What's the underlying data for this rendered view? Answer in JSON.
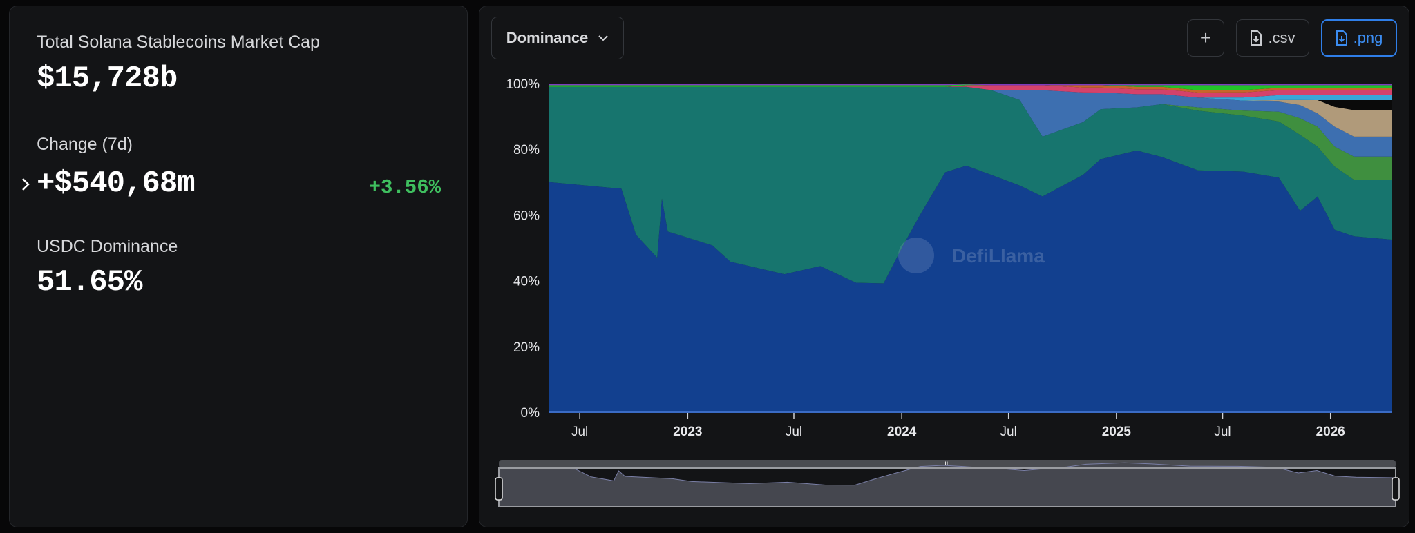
{
  "summary": {
    "market_cap_label": "Total Solana Stablecoins Market Cap",
    "market_cap_value": "$15,728b",
    "change_label": "Change (7d)",
    "change_value": "+$540,68m",
    "change_percent": "+3.56%",
    "dominance_label": "USDC Dominance",
    "dominance_value": "51.65%",
    "positive_color": "#3fbf5f"
  },
  "toolbar": {
    "view_select": "Dominance",
    "add_label": "+",
    "csv_label": ".csv",
    "png_label": ".png",
    "accent_color": "#2f7ee8"
  },
  "watermark": "DefiLlama",
  "chart_data": {
    "type": "area",
    "stacked": true,
    "normalized": true,
    "ylim": [
      0,
      100
    ],
    "yticks": [
      "0%",
      "20%",
      "40%",
      "60%",
      "80%",
      "100%"
    ],
    "xlim": [
      "2022-05-10",
      "2026-04-15"
    ],
    "xticks": [
      {
        "date": "2022-07-01",
        "label": "Jul",
        "bold": false
      },
      {
        "date": "2023-01-01",
        "label": "2023",
        "bold": true
      },
      {
        "date": "2023-07-01",
        "label": "Jul",
        "bold": false
      },
      {
        "date": "2024-01-01",
        "label": "2024",
        "bold": true
      },
      {
        "date": "2024-07-01",
        "label": "Jul",
        "bold": false
      },
      {
        "date": "2025-01-01",
        "label": "2025",
        "bold": true
      },
      {
        "date": "2025-07-01",
        "label": "Jul",
        "bold": false
      },
      {
        "date": "2026-01-01",
        "label": "2026",
        "bold": true
      }
    ],
    "grid": false,
    "legend": "none",
    "x": [
      "2022-05-10",
      "2022-09-10",
      "2022-10-05",
      "2022-11-10",
      "2022-11-18",
      "2022-11-28",
      "2023-02-12",
      "2023-03-15",
      "2023-06-15",
      "2023-08-15",
      "2023-10-15",
      "2023-12-01",
      "2024-01-01",
      "2024-02-01",
      "2024-03-15",
      "2024-04-20",
      "2024-06-01",
      "2024-07-20",
      "2024-08-28",
      "2024-11-05",
      "2024-12-05",
      "2025-02-05",
      "2025-03-20",
      "2025-05-20",
      "2025-08-05",
      "2025-10-05",
      "2025-11-10",
      "2025-12-10",
      "2026-01-08",
      "2026-02-10",
      "2026-04-15"
    ],
    "series": [
      {
        "color": "#12408f",
        "values": [
          70,
          68,
          54,
          47,
          65,
          55,
          51,
          46,
          42,
          44,
          39,
          39,
          50,
          60,
          73,
          75,
          73,
          69,
          65,
          72,
          76,
          79,
          77,
          73,
          73,
          71,
          61,
          65,
          55,
          53,
          52
        ]
      },
      {
        "color": "#17756e",
        "values": [
          29,
          31,
          45,
          52,
          34,
          44,
          48.5,
          53.5,
          57,
          54,
          59,
          59.5,
          49,
          39,
          26,
          24,
          26,
          26,
          18,
          16,
          15,
          13,
          16,
          18,
          17,
          17,
          23,
          15,
          19,
          17,
          18
        ]
      },
      {
        "color": "#3f8f3f",
        "values": [
          0,
          0,
          0,
          0,
          0,
          0,
          0,
          0,
          0,
          0,
          0,
          0,
          0,
          0,
          0,
          0,
          0,
          0,
          0,
          0,
          0,
          0,
          0,
          1,
          1.5,
          3,
          5,
          6,
          6,
          7,
          7
        ]
      },
      {
        "color": "#3d6fb0",
        "values": [
          0,
          0,
          0,
          0,
          0,
          0,
          0,
          0,
          0,
          0,
          0,
          0,
          0,
          0,
          0,
          0,
          0,
          3,
          14,
          9,
          5,
          4,
          3,
          3,
          3,
          3,
          4,
          4,
          6,
          6,
          6
        ]
      },
      {
        "color": "#b09a7a",
        "values": [
          0,
          0,
          0,
          0,
          0,
          0,
          0,
          0,
          0,
          0,
          0,
          0,
          0,
          0,
          0,
          0,
          0,
          0,
          0,
          0,
          0,
          0,
          0,
          0,
          0,
          0.5,
          1.5,
          4,
          6,
          8,
          8
        ]
      },
      {
        "color": "#0a0a0a",
        "values": [
          0,
          0,
          0,
          0,
          0,
          0,
          0,
          0,
          0,
          0,
          0,
          0,
          0,
          0,
          0,
          0,
          0,
          0,
          0,
          0,
          0,
          0,
          0,
          0,
          0,
          0,
          0,
          0,
          2,
          3,
          3
        ]
      },
      {
        "color": "#3aa6d8",
        "values": [
          0,
          0,
          0,
          0,
          0,
          0,
          0,
          0,
          0,
          0,
          0,
          0,
          0,
          0,
          0,
          0,
          0,
          0,
          0,
          0,
          0,
          0,
          0,
          0,
          1,
          1.5,
          1.5,
          1.5,
          1.5,
          1.5,
          1.5
        ]
      },
      {
        "color": "#d4426b",
        "values": [
          0,
          0,
          0,
          0,
          0,
          0,
          0,
          0,
          0,
          0,
          0,
          0,
          0,
          0,
          0,
          0.5,
          1.5,
          1.5,
          1.5,
          1.5,
          1.5,
          1.5,
          1.5,
          1.5,
          1.5,
          1.5,
          1.5,
          1.5,
          1.5,
          1.5,
          1.5
        ]
      },
      {
        "color": "#c8642a",
        "values": [
          0,
          0,
          0,
          0,
          0,
          0,
          0,
          0,
          0,
          0,
          0,
          0,
          0,
          0,
          0,
          0,
          0,
          0,
          0,
          0.7,
          0.7,
          0.7,
          0.7,
          0.7,
          0.7,
          0.7,
          0.7,
          0.7,
          0.7,
          0.7,
          0.7
        ]
      },
      {
        "color": "#22c32a",
        "values": [
          0.5,
          0.5,
          0.5,
          0.5,
          0.5,
          0.5,
          0.5,
          0.5,
          0.5,
          0.5,
          0.5,
          0.5,
          0.5,
          0.5,
          0.5,
          0.2,
          0,
          0,
          0,
          0,
          0,
          0.5,
          0.5,
          1.5,
          1.5,
          0.8,
          0.8,
          0.8,
          0.8,
          0.8,
          0.8
        ]
      },
      {
        "color": "#7d3bbf",
        "values": [
          0.5,
          0.5,
          0.5,
          0.5,
          0.5,
          0.5,
          0.5,
          0.5,
          0.5,
          0.5,
          0.5,
          0.5,
          0.5,
          0.5,
          0.5,
          0.3,
          0.5,
          0.5,
          0.5,
          0.5,
          0.5,
          0.5,
          0.5,
          0.5,
          0.5,
          0.5,
          0.5,
          0.5,
          0.5,
          0.5,
          0.5
        ]
      }
    ]
  }
}
